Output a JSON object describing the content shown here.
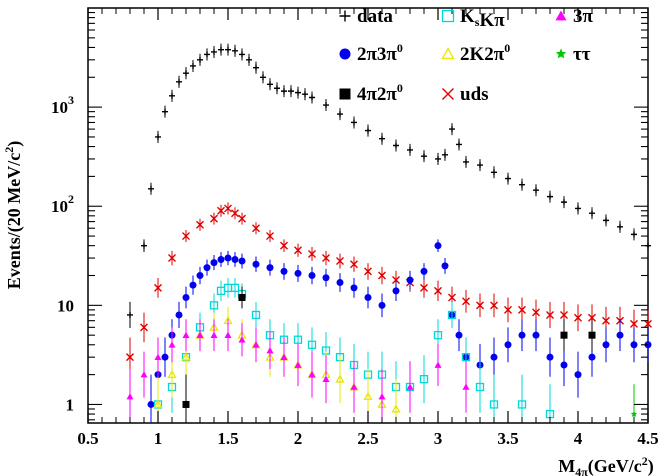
{
  "chart_data": {
    "type": "scatter",
    "xlabel": "M_{4π}(GeV/c^2)",
    "ylabel": "Events/(20 MeV/c^2)",
    "xlim": [
      0.5,
      4.5
    ],
    "ylim": [
      0.65,
      10000
    ],
    "yscale": "log",
    "xticks": [
      0.5,
      1,
      1.5,
      2,
      2.5,
      3,
      3.5,
      4,
      4.5
    ],
    "xtick_labels": [
      "0.5",
      "1",
      "1.5",
      "2",
      "2.5",
      "3",
      "3.5",
      "4",
      "4.5"
    ],
    "ytick_labels": [
      {
        "value": 1,
        "label": "1"
      },
      {
        "value": 10,
        "label": "10"
      },
      {
        "value": 100,
        "label": "10",
        "sup": "2"
      },
      {
        "value": 1000,
        "label": "10",
        "sup": "3"
      }
    ],
    "legend_placement": "top-right",
    "legend": [
      {
        "label": "data",
        "series": "data"
      },
      {
        "label": "K_sKπ",
        "series": "KsKpi"
      },
      {
        "label": "3π",
        "series": "3pi"
      },
      {
        "label": "2π3π^0",
        "series": "2pi3pi0"
      },
      {
        "label": "2K2π^0",
        "series": "2K2pi0"
      },
      {
        "label": "ττ",
        "series": "tautau"
      },
      {
        "label": "4π2π^0",
        "series": "4pi2pi0"
      },
      {
        "label": "uds",
        "series": "uds"
      }
    ],
    "series": [
      {
        "name": "data",
        "color": "#000000",
        "marker": "plus",
        "x": [
          0.8,
          0.9,
          0.95,
          1.0,
          1.05,
          1.1,
          1.15,
          1.2,
          1.25,
          1.3,
          1.35,
          1.4,
          1.45,
          1.5,
          1.55,
          1.6,
          1.65,
          1.7,
          1.75,
          1.8,
          1.85,
          1.9,
          1.95,
          2.0,
          2.05,
          2.1,
          2.2,
          2.3,
          2.4,
          2.5,
          2.6,
          2.7,
          2.8,
          2.9,
          3.0,
          3.05,
          3.1,
          3.15,
          3.2,
          3.3,
          3.4,
          3.5,
          3.6,
          3.7,
          3.8,
          3.9,
          4.0,
          4.1,
          4.2,
          4.3,
          4.4,
          4.5
        ],
        "y": [
          8,
          40,
          150,
          500,
          900,
          1300,
          1800,
          2200,
          2600,
          3000,
          3400,
          3600,
          3800,
          3800,
          3700,
          3400,
          3000,
          2500,
          2000,
          1700,
          1550,
          1450,
          1450,
          1400,
          1350,
          1250,
          1050,
          850,
          700,
          580,
          480,
          410,
          370,
          320,
          300,
          330,
          600,
          420,
          280,
          260,
          220,
          190,
          165,
          145,
          125,
          110,
          95,
          85,
          72,
          62,
          52,
          40
        ]
      },
      {
        "name": "uds",
        "color": "#e00000",
        "marker": "x",
        "x": [
          0.8,
          0.9,
          1.0,
          1.1,
          1.2,
          1.3,
          1.4,
          1.45,
          1.5,
          1.55,
          1.6,
          1.7,
          1.8,
          1.9,
          2.0,
          2.1,
          2.2,
          2.3,
          2.4,
          2.5,
          2.6,
          2.7,
          2.8,
          2.9,
          3.0,
          3.1,
          3.2,
          3.3,
          3.4,
          3.5,
          3.6,
          3.7,
          3.8,
          3.9,
          4.0,
          4.1,
          4.2,
          4.3,
          4.4,
          4.5
        ],
        "y": [
          3,
          6,
          15,
          30,
          50,
          65,
          75,
          90,
          95,
          85,
          75,
          60,
          50,
          40,
          36,
          33,
          30,
          28,
          26,
          22,
          20,
          18,
          17,
          15,
          14,
          12,
          11,
          10,
          10,
          9,
          9,
          8.5,
          8,
          8,
          7.5,
          7.5,
          7,
          7,
          6.5,
          6.5
        ]
      },
      {
        "name": "2π3π^0",
        "color": "#0000ee",
        "marker": "circle",
        "x": [
          0.95,
          1.0,
          1.05,
          1.1,
          1.15,
          1.2,
          1.25,
          1.3,
          1.35,
          1.4,
          1.45,
          1.5,
          1.55,
          1.6,
          1.7,
          1.8,
          1.9,
          2.0,
          2.1,
          2.2,
          2.3,
          2.4,
          2.5,
          2.6,
          2.7,
          2.8,
          2.9,
          3.0,
          3.05,
          3.1,
          3.15,
          3.2,
          3.3,
          3.4,
          3.5,
          3.6,
          3.7,
          3.8,
          3.9,
          4.0,
          4.1,
          4.2,
          4.3,
          4.4,
          4.5
        ],
        "y": [
          1,
          2,
          3,
          5,
          8,
          12,
          16,
          20,
          24,
          27,
          29,
          30,
          29,
          28,
          26,
          24,
          22,
          21,
          20,
          19,
          17,
          15,
          12,
          10,
          14,
          18,
          22,
          40,
          25,
          8,
          5,
          3,
          2.5,
          3,
          4,
          5,
          5,
          3,
          2.5,
          2,
          3,
          4,
          5,
          4,
          4
        ]
      },
      {
        "name": "K_sKπ",
        "color": "#00d8d8",
        "marker": "square",
        "x": [
          1.0,
          1.1,
          1.2,
          1.3,
          1.4,
          1.45,
          1.5,
          1.55,
          1.6,
          1.7,
          1.8,
          1.9,
          2.0,
          2.1,
          2.2,
          2.3,
          2.4,
          2.5,
          2.6,
          2.7,
          2.8,
          2.9,
          3.0,
          3.1,
          3.2,
          3.3,
          3.4,
          3.6,
          3.8
        ],
        "y": [
          1,
          1.5,
          3,
          6,
          10,
          14,
          15,
          15,
          13,
          8,
          5,
          4.5,
          4.5,
          4,
          3.5,
          3,
          2.5,
          2,
          2,
          1.5,
          1.5,
          1.8,
          5,
          8,
          3,
          1.5,
          1,
          1,
          0.8
        ]
      },
      {
        "name": "2K2π^0",
        "color": "#e8e800",
        "marker": "triangle-open",
        "x": [
          1.0,
          1.1,
          1.2,
          1.3,
          1.4,
          1.5,
          1.6,
          1.7,
          1.8,
          1.9,
          2.0,
          2.1,
          2.2,
          2.3,
          2.4,
          2.5,
          2.6,
          2.7
        ],
        "y": [
          1,
          2,
          3,
          5,
          6,
          7,
          5,
          4,
          3,
          3,
          2.5,
          2,
          2,
          1.8,
          1.5,
          1.2,
          1,
          0.9
        ]
      },
      {
        "name": "3π",
        "color": "#ff00ff",
        "marker": "triangle",
        "x": [
          0.8,
          0.9,
          1.0,
          1.1,
          1.2,
          1.3,
          1.4,
          1.5,
          1.6,
          1.7,
          1.8,
          1.9,
          2.0,
          2.1,
          2.2,
          2.4,
          2.6,
          2.8,
          3.0,
          3.2
        ],
        "y": [
          1.2,
          2,
          3,
          4,
          5,
          5,
          5,
          5,
          4.5,
          4,
          3.5,
          3,
          2.5,
          2,
          1.8,
          1.5,
          1.2,
          1.5,
          2.5,
          1.5
        ]
      },
      {
        "name": "4π2π^0",
        "color": "#000000",
        "marker": "square-filled",
        "x": [
          1.2,
          1.6,
          3.9,
          4.1
        ],
        "y": [
          1,
          12,
          5,
          5
        ]
      },
      {
        "name": "ττ",
        "color": "#00c800",
        "marker": "star",
        "x": [
          4.4
        ],
        "y": [
          0.8
        ]
      }
    ]
  }
}
